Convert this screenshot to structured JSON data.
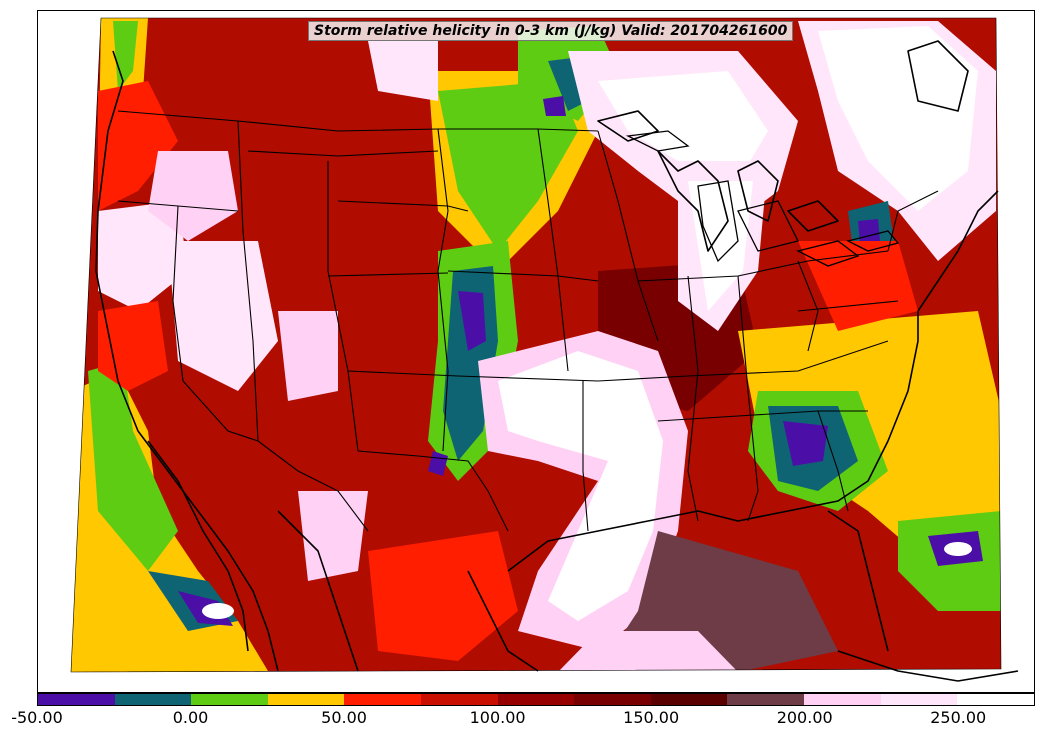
{
  "title": "Storm relative helicity in 0-3 km (J/kg) Valid: 201704261600",
  "colorbar": {
    "min": -50,
    "max": 275,
    "step": 25,
    "colors": [
      "#4b0fa8",
      "#0f6473",
      "#5fcc14",
      "#ffc800",
      "#ff1e00",
      "#c80f00",
      "#960000",
      "#780000",
      "#5a0000",
      "#6e3c46",
      "#ffd2f5",
      "#ffe6fa",
      "#ffffff"
    ],
    "tick_labels": [
      "-50.00",
      "0.00",
      "50.00",
      "100.00",
      "150.00",
      "200.00",
      "250.00"
    ],
    "tick_values": [
      -50,
      0,
      50,
      100,
      150,
      200,
      250
    ]
  },
  "map": {
    "domain_fill": "#c80f00",
    "coastline_color": "#000000"
  }
}
